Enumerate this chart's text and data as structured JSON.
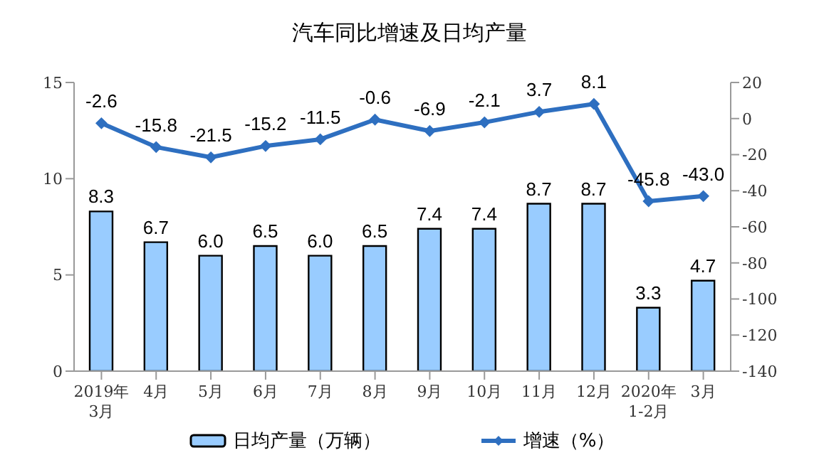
{
  "chart_data": {
    "type": "bar",
    "title": "汽车同比增速及日均产量",
    "categories": [
      "2019年\n3月",
      "4月",
      "5月",
      "6月",
      "7月",
      "8月",
      "9月",
      "10月",
      "11月",
      "12月",
      "2020年\n1-2月",
      "3月"
    ],
    "series": [
      {
        "name": "日均产量（万辆）",
        "color": "#99ccff",
        "values": [
          8.3,
          6.7,
          6.0,
          6.5,
          6.0,
          6.5,
          7.4,
          7.4,
          8.7,
          8.7,
          3.3,
          4.7
        ],
        "value_labels": [
          "8.3",
          "6.7",
          "6.0",
          "6.5",
          "6.0",
          "6.5",
          "7.4",
          "7.4",
          "8.7",
          "8.7",
          "3.3",
          "4.7"
        ]
      },
      {
        "name": "增速（%）",
        "type": "line",
        "axis": "y2",
        "color": "#2e6fc0",
        "values": [
          -2.6,
          -15.8,
          -21.5,
          -15.2,
          -11.5,
          -0.6,
          -6.9,
          -2.1,
          3.7,
          8.1,
          -45.8,
          -43.0
        ],
        "value_labels": [
          "-2.6",
          "-15.8",
          "-21.5",
          "-15.2",
          "-11.5",
          "-0.6",
          "-6.9",
          "-2.1",
          "3.7",
          "8.1",
          "-45.8",
          "-43.0"
        ]
      }
    ],
    "ylim": [
      0,
      15
    ],
    "yticks": [
      0,
      5,
      10,
      15
    ],
    "y2lim": [
      -140,
      20
    ],
    "y2ticks": [
      -140,
      -120,
      -100,
      -80,
      -60,
      -40,
      -20,
      0,
      20
    ],
    "legend": "bottom",
    "marker": "diamond"
  }
}
